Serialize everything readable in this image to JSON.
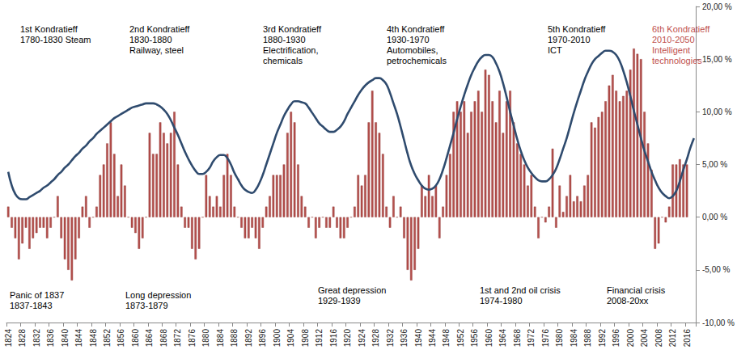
{
  "chart_data": {
    "type": "bar",
    "categories": [
      "1824",
      null,
      null,
      null,
      "1828",
      null,
      null,
      null,
      "1832",
      null,
      null,
      null,
      "1836",
      null,
      null,
      null,
      "1840",
      null,
      null,
      null,
      "1844",
      null,
      null,
      null,
      "1848",
      null,
      null,
      null,
      "1852",
      null,
      null,
      null,
      "1856",
      null,
      null,
      null,
      "1860",
      null,
      null,
      null,
      "1864",
      null,
      null,
      null,
      "1868",
      null,
      null,
      null,
      "1872",
      null,
      null,
      null,
      "1876",
      null,
      null,
      null,
      "1880",
      null,
      null,
      null,
      "1884",
      null,
      null,
      null,
      "1888",
      null,
      null,
      null,
      "1892",
      null,
      null,
      null,
      "1896",
      null,
      null,
      null,
      "1900",
      null,
      null,
      null,
      "1904",
      null,
      null,
      null,
      "1908",
      null,
      null,
      null,
      "1912",
      null,
      null,
      null,
      "1916",
      null,
      null,
      null,
      "1920",
      null,
      null,
      null,
      "1924",
      null,
      null,
      null,
      "1928",
      null,
      null,
      null,
      "1932",
      null,
      null,
      null,
      "1936",
      null,
      null,
      null,
      "1940",
      null,
      null,
      null,
      "1944",
      null,
      null,
      null,
      "1948",
      null,
      null,
      null,
      "1952",
      null,
      null,
      null,
      "1956",
      null,
      null,
      null,
      "1960",
      null,
      null,
      null,
      "1964",
      null,
      null,
      null,
      "1968",
      null,
      null,
      null,
      "1972",
      null,
      null,
      null,
      "1976",
      null,
      null,
      null,
      "1980",
      null,
      null,
      null,
      "1984",
      null,
      null,
      null,
      "1988",
      null,
      null,
      null,
      "1992",
      null,
      null,
      null,
      "1996",
      null,
      null,
      null,
      "2000",
      null,
      null,
      null,
      "2004",
      null,
      null,
      null,
      "2008",
      null,
      null,
      null,
      "2012",
      null,
      null,
      null,
      "2016",
      null,
      null
    ],
    "series": [
      {
        "type": "bar",
        "color": "#b5504d",
        "values": [
          1.0,
          -1.0,
          -2.0,
          -4.0,
          -2.5,
          -1.0,
          -3.0,
          -2.0,
          -1.5,
          -1.0,
          -1.0,
          -2.0,
          -1.0,
          0,
          2.0,
          -2.0,
          -4.0,
          -5.0,
          -6.0,
          -4.0,
          -2.0,
          1.0,
          2.0,
          -1.0,
          0,
          1.0,
          4.0,
          5.0,
          7.0,
          9.0,
          6.0,
          2.0,
          5.0,
          3.0,
          0,
          -1.0,
          -1.5,
          -3.0,
          -2.0,
          0,
          8,
          6,
          6,
          9,
          8,
          7,
          8,
          10,
          5,
          1,
          -1,
          -1,
          -3,
          -4,
          -3,
          0,
          4,
          2,
          1,
          2,
          1,
          4,
          6,
          4,
          1,
          0,
          -1,
          -2,
          -2,
          -1,
          -2,
          -3,
          -1,
          1,
          2,
          4,
          4,
          4,
          5,
          8,
          10,
          9,
          5,
          2,
          1,
          -1,
          0,
          -2,
          -1,
          0,
          -1,
          -1,
          1,
          -1,
          -2,
          -2,
          -1,
          0,
          1,
          4,
          3,
          4,
          9,
          12,
          9,
          8,
          6,
          1,
          -1,
          2,
          0,
          1,
          -2,
          -5,
          -6,
          -5,
          -3,
          3,
          2,
          4,
          2,
          3,
          -2,
          1,
          4,
          6,
          10,
          11,
          10,
          11,
          8,
          10,
          11,
          12,
          10,
          14,
          13.5,
          11,
          9,
          12,
          8,
          11,
          12,
          9,
          7,
          6,
          5,
          3,
          4,
          1,
          -2,
          0,
          -0.5,
          1,
          6.5,
          -1,
          3,
          0.5,
          2,
          4,
          1.5,
          2,
          1.5,
          3,
          4,
          9,
          8.5,
          9.5,
          10,
          11,
          12.5,
          13.5,
          12,
          11,
          11.5,
          12,
          14,
          16,
          15.5,
          15,
          10,
          7,
          4.5,
          -3,
          -2.5,
          0,
          -0.5,
          1,
          5,
          5,
          5.5,
          5,
          5,
          null,
          null
        ]
      },
      {
        "type": "line",
        "color": "#2f4b6e",
        "values": [
          4.3,
          3.0,
          2.2,
          1.8,
          1.7,
          1.7,
          1.9,
          2.1,
          2.3,
          2.5,
          2.8,
          3.0,
          3.3,
          3.6,
          4.0,
          4.3,
          4.7,
          5.0,
          5.4,
          5.8,
          6.1,
          6.5,
          6.8,
          7.2,
          7.5,
          7.9,
          8.2,
          8.5,
          8.8,
          9.1,
          9.4,
          9.6,
          9.8,
          10.0,
          10.2,
          10.4,
          10.5,
          10.6,
          10.7,
          10.8,
          10.8,
          10.8,
          10.7,
          10.5,
          10.2,
          9.8,
          9.2,
          8.5,
          7.8,
          7.0,
          6.2,
          5.5,
          4.9,
          4.4,
          4.1,
          4.1,
          4.3,
          4.7,
          5.3,
          5.7,
          5.9,
          5.9,
          5.6,
          5.0,
          4.2,
          3.6,
          3.0,
          2.6,
          2.4,
          2.3,
          2.6,
          3.2,
          4.0,
          5.0,
          6.0,
          7.0,
          8.0,
          8.8,
          9.6,
          10.2,
          10.7,
          11.0,
          11.0,
          10.9,
          10.8,
          10.4,
          9.9,
          9.4,
          8.9,
          8.6,
          8.3,
          8.1,
          8.1,
          8.3,
          8.6,
          9.1,
          9.8,
          10.4,
          11.0,
          11.6,
          12.1,
          12.5,
          12.8,
          13.0,
          13.2,
          13.2,
          13.0,
          12.6,
          11.8,
          10.8,
          9.8,
          8.6,
          7.3,
          6.0,
          4.9,
          4.1,
          3.5,
          3.0,
          2.7,
          2.6,
          2.7,
          3.0,
          3.6,
          4.5,
          5.6,
          6.8,
          8.0,
          9.3,
          10.5,
          11.6,
          12.6,
          13.5,
          14.2,
          14.8,
          15.2,
          15.4,
          15.4,
          15.2,
          14.6,
          13.8,
          12.7,
          11.4,
          10.0,
          8.7,
          7.4,
          6.3,
          5.4,
          4.7,
          4.2,
          3.8,
          3.5,
          3.4,
          3.4,
          3.6,
          4.0,
          4.6,
          5.5,
          6.5,
          7.5,
          8.7,
          9.9,
          11.0,
          12.0,
          13.0,
          13.8,
          14.5,
          15.0,
          15.3,
          15.6,
          15.8,
          15.8,
          15.7,
          15.4,
          14.8,
          13.9,
          12.8,
          11.5,
          10.1,
          8.8,
          7.5,
          6.3,
          5.3,
          4.3,
          3.5,
          2.8,
          2.3,
          2.0,
          1.8,
          2.0,
          2.5,
          3.4,
          4.5,
          5.5,
          6.6,
          7.5
        ]
      }
    ],
    "ylim": [
      -10,
      20
    ],
    "yticks": [
      {
        "value": -10,
        "label": "-10,00 %"
      },
      {
        "value": -5,
        "label": "-5,00 %"
      },
      {
        "value": 0,
        "label": "0,00 %"
      },
      {
        "value": 5,
        "label": "5,00 %"
      },
      {
        "value": 10,
        "label": "10,00 %"
      },
      {
        "value": 15,
        "label": "15,00 %"
      },
      {
        "value": 20,
        "label": "20,00 %"
      }
    ],
    "grid": false,
    "annotations": [
      {
        "lines": [
          "1st Kondratieff",
          "1780-1830 Steam"
        ],
        "color": "#000000"
      },
      {
        "lines": [
          "2nd Kondratieff",
          "1830-1880",
          "Railway, steel"
        ],
        "color": "#000000"
      },
      {
        "lines": [
          "3rd Kondratieff",
          "1880-1930",
          "Electrification,",
          "chemicals"
        ],
        "color": "#000000"
      },
      {
        "lines": [
          "4th Kondratieff",
          "1930-1970",
          "Automobiles,",
          "petrochemicals"
        ],
        "color": "#000000"
      },
      {
        "lines": [
          "5th Kondratieff",
          "1970-2010",
          "ICT"
        ],
        "color": "#000000"
      },
      {
        "lines": [
          "6th Kondratieff",
          "2010-2050",
          "Intelligent",
          "technologies"
        ],
        "color": "#c0504d"
      },
      {
        "lines": [
          "Panic of 1837",
          "1837-1843"
        ],
        "color": "#000000"
      },
      {
        "lines": [
          "Long depression",
          "1873-1879"
        ],
        "color": "#000000"
      },
      {
        "lines": [
          "Great depression",
          "1929-1939"
        ],
        "color": "#000000"
      },
      {
        "lines": [
          "1st and 2nd oil crisis",
          "1974-1980"
        ],
        "color": "#000000"
      },
      {
        "lines": [
          "Financial crisis",
          "2008-20xx"
        ],
        "color": "#000000"
      }
    ]
  }
}
